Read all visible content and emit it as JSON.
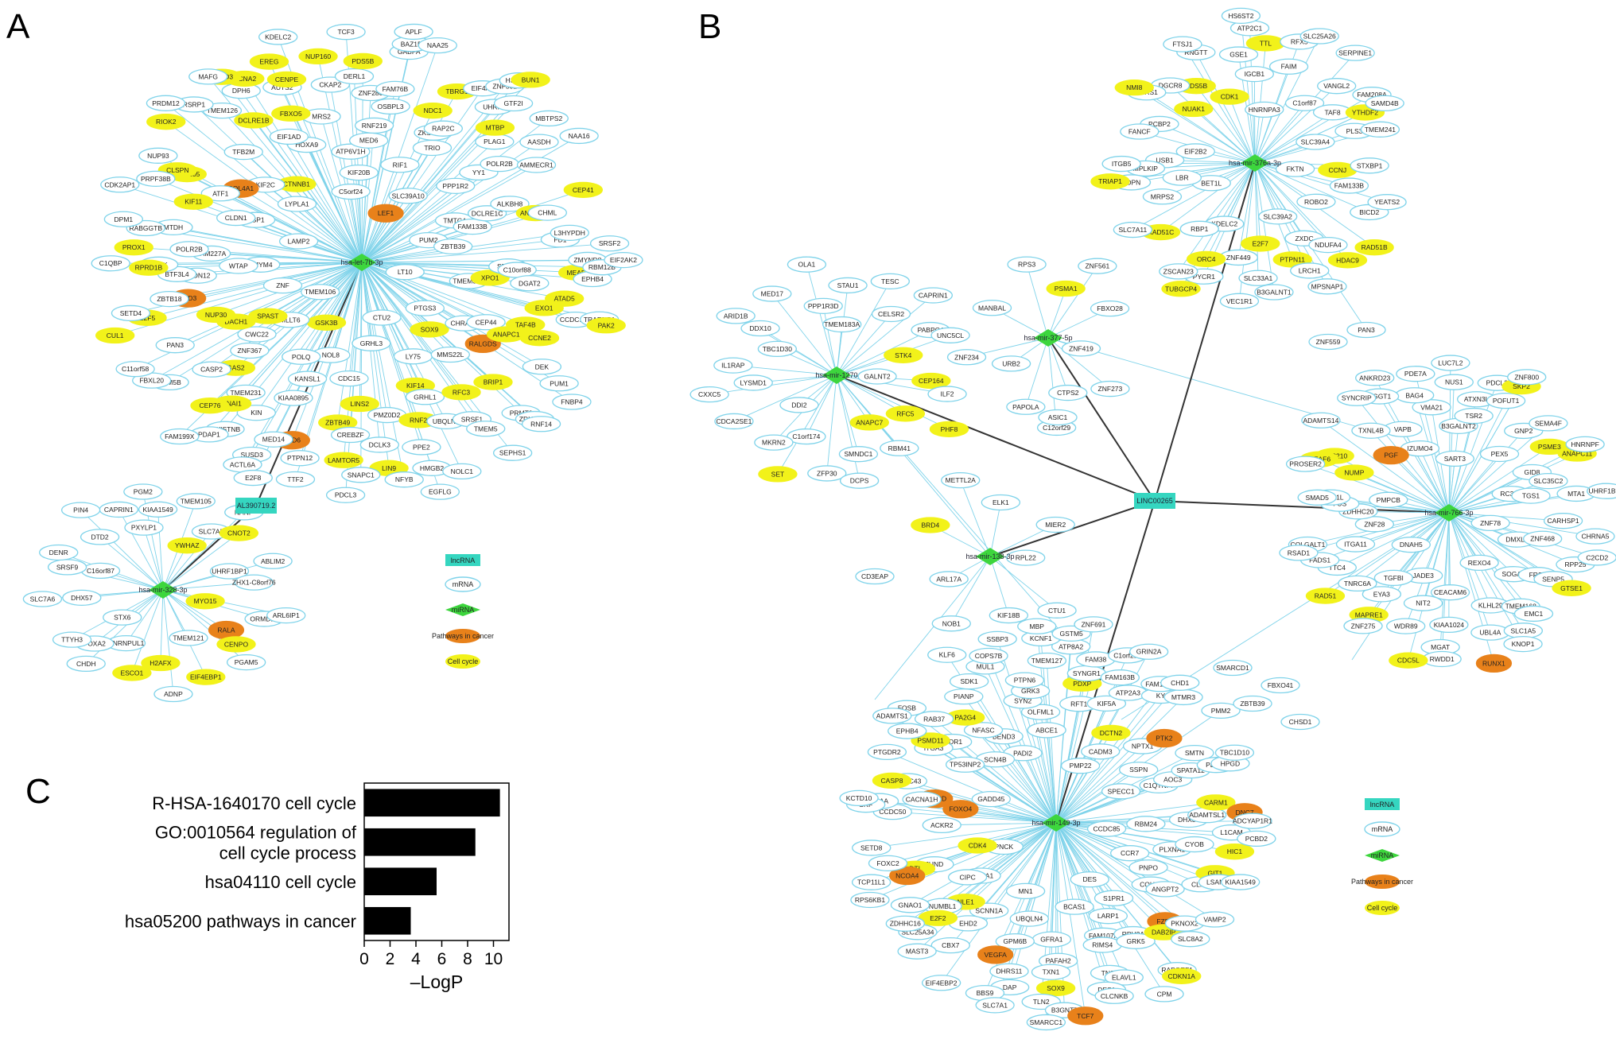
{
  "panels": {
    "a": "A",
    "b": "B",
    "c": "C"
  },
  "colors": {
    "edge_light": "#7fd3ea",
    "edge_dark": "#333333",
    "mrna_fill": "#ffffff",
    "mrna_stroke": "#7fd3ea",
    "cell_cycle": "#f2f21a",
    "pathways": "#e8811a",
    "mirna": "#3dd63d",
    "lncrna": "#35d6c0",
    "bar": "#000000"
  },
  "panel_a": {
    "lncrna": "AL390719.2",
    "mirnas": [
      "hsa-let-7b-3p",
      "hsa-mir-328-3p"
    ],
    "hub1_cell_cycle": [
      "CCNA2",
      "GSK3B",
      "BUN1",
      "SNAI1",
      "TAF4B",
      "KIF11",
      "E2F5",
      "ANAPC1",
      "ANAPC10",
      "BRIP1",
      "CENPE",
      "PAK2",
      "NUP205",
      "SOX9",
      "MTBP",
      "GAS2",
      "MEAF6",
      "DACH1",
      "CEP41",
      "RIOK2",
      "LINS2",
      "RNF2",
      "NDC1",
      "LEMD3",
      "CEP76",
      "EXO1",
      "SPAST",
      "KIF14",
      "XPO1",
      "ATAD5",
      "RFC3",
      "ZBTB49",
      "CUL1",
      "DCLRE1B",
      "LAMTOR5",
      "RPRD1B",
      "LIN9",
      "EREG",
      "PROX1",
      "CTNNB1",
      "FBXO5",
      "CLSPN",
      "TBRG1",
      "NUP30",
      "CCNE2",
      "PDS5B",
      "NUP160"
    ],
    "hub1_pathways": [
      "COL4A1",
      "FZD6",
      "RALGDS",
      "LEF1",
      "FZD3"
    ],
    "hub1_mrna": [
      "KDM5B",
      "MAFG",
      "HOXA9",
      "PTPN12",
      "LT10",
      "RSRP1",
      "MRS2",
      "MBTPS2",
      "TMEM231",
      "OSBPL3",
      "C11orf58",
      "DGAT2",
      "ZKSCAN1",
      "AMMECR1",
      "PDAP1",
      "C10orf88",
      "CTU2",
      "EIF1AD",
      "NOLC1",
      "PASK",
      "SETD4",
      "CEP44",
      "FNBP4",
      "ACTL6A",
      "USP1",
      "NFYB",
      "CKAP2",
      "CDC15",
      "POLR2B",
      "ATF1",
      "NAA25",
      "SLC39A10",
      "KIN",
      "PPE2",
      "FD1",
      "CHML",
      "CHRAC1",
      "AASDH",
      "MMS22L",
      "NUP93",
      "APLF",
      "SRSF1",
      "GTF2I",
      "AUTS2",
      "RABGGTB",
      "MTDH",
      "RAP2C",
      "E2F8",
      "HMGB2",
      "BAZ1B",
      "KIAA0895",
      "MED6",
      "DERL1",
      "ZBTB39",
      "PRPF38B",
      "TCF3",
      "TMEM106",
      "C5orf24",
      "EPHB4",
      "CWC22",
      "GABPA",
      "CLDN1",
      "DCLK3",
      "ZNF280",
      "LY75",
      "BTF3L4",
      "FAM76B",
      "SUSD3",
      "TRAF3IP1",
      "PAN3",
      "LAMP2",
      "SNAPC1",
      "DCLRE1C",
      "MED14",
      "SRSF2",
      "ZMYND8",
      "WTAP",
      "ATP6V1H",
      "SEPHS1",
      "LYPLA1",
      "PRDM12",
      "PRMT3",
      "KIF20B",
      "ZNF302",
      "PTGS3",
      "GRHL3",
      "ALKBH8",
      "RIF1",
      "UBQLN1",
      "TWISTNB",
      "KDELC2",
      "PLAG1",
      "DPM1",
      "C1QBP",
      "EGFLG",
      "EIF4A1",
      "RNF14",
      "FBXL20",
      "RNF219",
      "ZNF367",
      "CASP2",
      "PUM2",
      "PMZ0D2",
      "NOL8",
      "FAM227A",
      "ZBTB18",
      "RBM12B",
      "DPH6",
      "NAA16",
      "YY1",
      "KIF2C",
      "KANSL1",
      "CREBZF",
      "DEK",
      "ZDHHC20",
      "TTF2",
      "FAM199X",
      "TMTC4",
      "EIF2AK2",
      "TMEM126",
      "CLDN12",
      "FAM133B",
      "PUM1",
      "MLLT6",
      "HSDST2",
      "PPP1R2",
      "CCDC126",
      "ZMYM4",
      "L3HYPDH",
      "TFB2M",
      "POLR2B",
      "GRHL1",
      "PDCL3",
      "TMEM5",
      "POLQ",
      "UHRF1",
      "SRSF3",
      "TRIO",
      "CDK2AP1",
      "TMEM55A",
      "ZNF"
    ],
    "hub2_cell_cycle": [
      "H2AFX",
      "CENPO",
      "EIF4EBP1",
      "CNOT2",
      "ESCO1",
      "YWHAZ",
      "MYO15"
    ],
    "hub2_pathways": [
      "RALA"
    ],
    "hub2_mrna": [
      "KIAA1549",
      "TMEM121",
      "PGM2",
      "PXYLP1",
      "C16orf87",
      "STX6",
      "TMEM105",
      "TTYH3",
      "SLC7A6",
      "PIN4",
      "ARL6IP1",
      "DTD2",
      "DHX57",
      "SRSF9",
      "ZHX1-C8orf76",
      "PGAM5",
      "CAPRIN1",
      "HNRNPUL1",
      "CHDH",
      "NANP",
      "ABLIM2",
      "ORMDL1",
      "ADNP",
      "SLC7A5",
      "FOXA2",
      "DENR",
      "UHRF1BP1"
    ]
  },
  "panel_b": {
    "lncrna": "LINC00265",
    "mirnas": [
      "hsa-mir-376a-3p",
      "hsa-mir-377-5p",
      "hsa-mir-1270",
      "hsa-mir-766-3p",
      "hsa-mir-138-3p",
      "hsa-mir-149-3p"
    ],
    "hub376_cell_cycle": [
      "NMI8",
      "TUBGCP4",
      "E2F7",
      "ORC4",
      "HDAC9",
      "CDK1",
      "PTPN11",
      "RAD51C",
      "NUAK1",
      "RAD51B",
      "YTHDF2",
      "TRIAP1",
      "PDS5B",
      "TTL",
      "CCNJ"
    ],
    "hub376_mrna": [
      "MRPS2",
      "HS6ST2",
      "ZXDC",
      "ZSCAN23",
      "RERS1",
      "SLC7A11",
      "PLS3",
      "VANGL2",
      "FANCF",
      "SAMD4B",
      "RFX5",
      "PDPN",
      "NDUFA4",
      "FKTN",
      "IGCB1",
      "ROBO2",
      "C1orf87",
      "YEATS2",
      "RBP1",
      "EIF2B2",
      "FTSJ1",
      "FAM208A",
      "MPLKIP",
      "SLC39A4",
      "PYCR1",
      "PCBP2",
      "BET1L",
      "ATP2C1",
      "SLC39A2",
      "FAIM",
      "SLC33A1",
      "VEC1R1",
      "B3GALNT1",
      "TMEM241",
      "SERPINE1",
      "ZNF449",
      "STXBP1",
      "ITGB5",
      "GSE1",
      "FAM133B",
      "KDELC2",
      "DGCR8",
      "USB1",
      "MPSNAP1",
      "BICD2",
      "RNGTT",
      "TAF8",
      "SLC25A26",
      "LBR",
      "HNRNPA3",
      "LRCH1"
    ],
    "hub1270_cell_cycle": [
      "STK4",
      "CEP164",
      "SET",
      "RFC5",
      "PHF8",
      "ANAPC7"
    ],
    "hub1270_mrna": [
      "ILF2",
      "CXXC5",
      "DCPS",
      "CELSR2",
      "DDI2",
      "OLA1",
      "ZFP30",
      "CDCA2SE1",
      "PABPC4",
      "RBM41",
      "DDX10",
      "MED17",
      "UNC5CL",
      "GALNT2",
      "TESC",
      "TBC1D30",
      "MKRN2",
      "C1orf174",
      "IL1RAP",
      "SMNDC1",
      "PPP1R3D",
      "ARID1B",
      "STAU1",
      "CAPRIN1",
      "LYSMD1",
      "TMEM183A"
    ],
    "hub377_cell_cycle": [
      "PSMA1"
    ],
    "hub377_mrna": [
      "MANBAL",
      "C12orf29",
      "CTPS2",
      "ZNF561",
      "FBXO28",
      "URB2",
      "RPS3",
      "PAPOLA",
      "ZNF273",
      "ZNF234",
      "ZNF419"
    ],
    "hub138_cell_cycle": [
      "BRD4"
    ],
    "hub138_mrna": [
      "ELK1",
      "METTL2A",
      "RPL22",
      "MIER2",
      "NOB1",
      "CTU1",
      "ARL17A",
      "KIF18B"
    ],
    "hub766_cell_cycle": [
      "GTSE1",
      "RAD51",
      "SKP2",
      "MAPRE1",
      "NUMP",
      "ANAPC11",
      "MEAF6",
      "PSME3",
      "NUP210",
      "CDC5L"
    ],
    "hub766_pathways": [
      "RUNX1",
      "PGF"
    ],
    "hub766_mrna": [
      "B3GALNT2",
      "FADS1",
      "PDE7A",
      "JADE3",
      "VAPB",
      "UHRF1BP1",
      "KNOP1",
      "ZNF800",
      "SLC35C2",
      "COLGALT1",
      "HNRNPF",
      "VMA21",
      "SYNCRIP",
      "PDCL3",
      "ITGA11",
      "FUS",
      "PMPCB",
      "UBL4A",
      "TGS1",
      "MTA1",
      "SLC1A5",
      "RC3H1",
      "TTC4",
      "POFUT1",
      "CEACAM6",
      "SEMA4F",
      "DNAH5",
      "RSAD1",
      "CARHSP1",
      "TSR2",
      "KLHL29",
      "PEX5",
      "LUC7L2",
      "ATXN3L",
      "CHRNA5",
      "PROSER2",
      "SMAD5",
      "UGGT1",
      "NIT2",
      "TMEM168",
      "GNP2",
      "IZUMO4",
      "TGFBI",
      "RWDD1",
      "TXNL4B",
      "BAG4",
      "DMXL2",
      "ZNF275",
      "KIAA1024",
      "EYA3",
      "SOGA1",
      "NUS1",
      "SART3",
      "WDR89",
      "THFD1L",
      "MGAT",
      "TNRC6A",
      "ADAMTS14",
      "ZNF78",
      "RPP25",
      "SENP5",
      "ZNF28",
      "ZDHHC20",
      "REXO4",
      "GID8",
      "EMC1",
      "C2CD2",
      "ANKRD23",
      "ZNF468",
      "FRS3"
    ],
    "hub149_cell_cycle": [
      "SOX9",
      "PA2G4",
      "CARM1",
      "PDXP",
      "GIT1",
      "HIC1",
      "CDK4",
      "NLE1",
      "DTL",
      "PSMD11",
      "DCTN2",
      "CASP8",
      "E2F2",
      "DAB2IP",
      "CDKN1A"
    ],
    "hub149_pathways": [
      "PTK2",
      "NCOA4",
      "FZD5",
      "DNC7",
      "VEGFA",
      "TCF7",
      "FOXO4",
      "PPARD"
    ],
    "hub149_mrna": [
      "S1PR1",
      "PCBD2",
      "FAM107A",
      "RBM24",
      "DHRS11",
      "CLCNKB",
      "SETD8",
      "PTGDR2",
      "KIF5A",
      "AOC3",
      "GRK3",
      "CHD1",
      "FOSB",
      "EHD2",
      "SPATA12",
      "CCDC85",
      "COH23",
      "RAPGEF1",
      "B3GNT7",
      "ADCYAP1R1",
      "TMEM127",
      "HMGA1",
      "PMP22",
      "BEND3",
      "MUL1",
      "DES1",
      "RIMS4",
      "HPGD",
      "MBP",
      "NAAA",
      "NPTX1",
      "ADAMTS1",
      "KCNF1",
      "SYN2",
      "DAP",
      "CADM3",
      "ITGA3",
      "SLC25A34",
      "SCN4B",
      "CIPC",
      "PNPO",
      "LARP1",
      "TXN1",
      "PMM2",
      "DES",
      "TBC1D10",
      "CCDC43",
      "COPS7B",
      "DHX35",
      "RPH3A",
      "GADD45",
      "GPM6B",
      "SMTN",
      "PTPN6",
      "GRIN2A",
      "GNAO1",
      "EPHB4",
      "CLMN",
      "ZNF691",
      "TCP11L1",
      "SLC7A1",
      "KIAA1549",
      "FAM129A",
      "BCAS1",
      "RFT1",
      "ACKR2",
      "ELAVL1",
      "LSAMP",
      "GSTM5",
      "ANGPT2",
      "SSBP3",
      "KLF6",
      "CCR7",
      "GFRA1",
      "OLFML1",
      "UBQLN4",
      "PLXNA1",
      "CYOB",
      "PIANP",
      "SCNN1A",
      "KY",
      "SRF",
      "SYNGR1",
      "PNCK",
      "ATP2A3",
      "PEX26",
      "CBX7",
      "EIF4EBP2",
      "C1QTNF7",
      "MTMR3",
      "L1CAM",
      "WDR1",
      "TLN2",
      "CACNA1H",
      "SLC8A2",
      "TP53INP2",
      "PAFAH2",
      "ABCE1",
      "ADAMTSL1",
      "PADI2",
      "ZDHHC16",
      "FAM163B",
      "FAM38",
      "RAB37",
      "FOXC2",
      "SPECC1",
      "CCDC50",
      "KCTD10",
      "TNS1",
      "NFASC",
      "PKNOX2",
      "VAMP2",
      "ATP8A2",
      "JUND",
      "MN1",
      "SDK1",
      "CPM",
      "MAST3",
      "GRK5",
      "SMARCC1",
      "C1orf210",
      "RPS6KB1",
      "NUMBL1",
      "SSPN",
      "BBS9"
    ],
    "cross_mrna": [
      "PAN3",
      "ZNF559",
      "ASIC1",
      "CD3EAP",
      "SMARCD1",
      "FBXO41",
      "ZBTB39",
      "CHSD1"
    ]
  },
  "legend_a": {
    "lncrna": "lncRNA",
    "mrna": "mRNA",
    "mirna": "miRNA",
    "pathways": "Pathways in cancer",
    "cell_cycle": "Cell cycle"
  },
  "legend_b": {
    "lncrna": "lncRNA",
    "mrna": "mRNA",
    "mirna": "miRNA",
    "pathways": "Pathways in cancer",
    "cell_cycle": "Cell cycle"
  },
  "chart_data": {
    "type": "bar",
    "orientation": "horizontal",
    "categories": [
      [
        "R-HSA-1640170 cell cycle"
      ],
      [
        "GO:0010564 regulation of",
        "cell cycle process"
      ],
      [
        "hsa04110 cell cycle"
      ],
      [
        "hsa05200 pathways in cancer"
      ]
    ],
    "values": [
      10.5,
      8.6,
      5.6,
      3.6
    ],
    "xlabel": "–LogP",
    "xlim": [
      0,
      11.2
    ],
    "xticks": [
      0,
      2,
      4,
      6,
      8,
      10
    ],
    "grid": false
  }
}
